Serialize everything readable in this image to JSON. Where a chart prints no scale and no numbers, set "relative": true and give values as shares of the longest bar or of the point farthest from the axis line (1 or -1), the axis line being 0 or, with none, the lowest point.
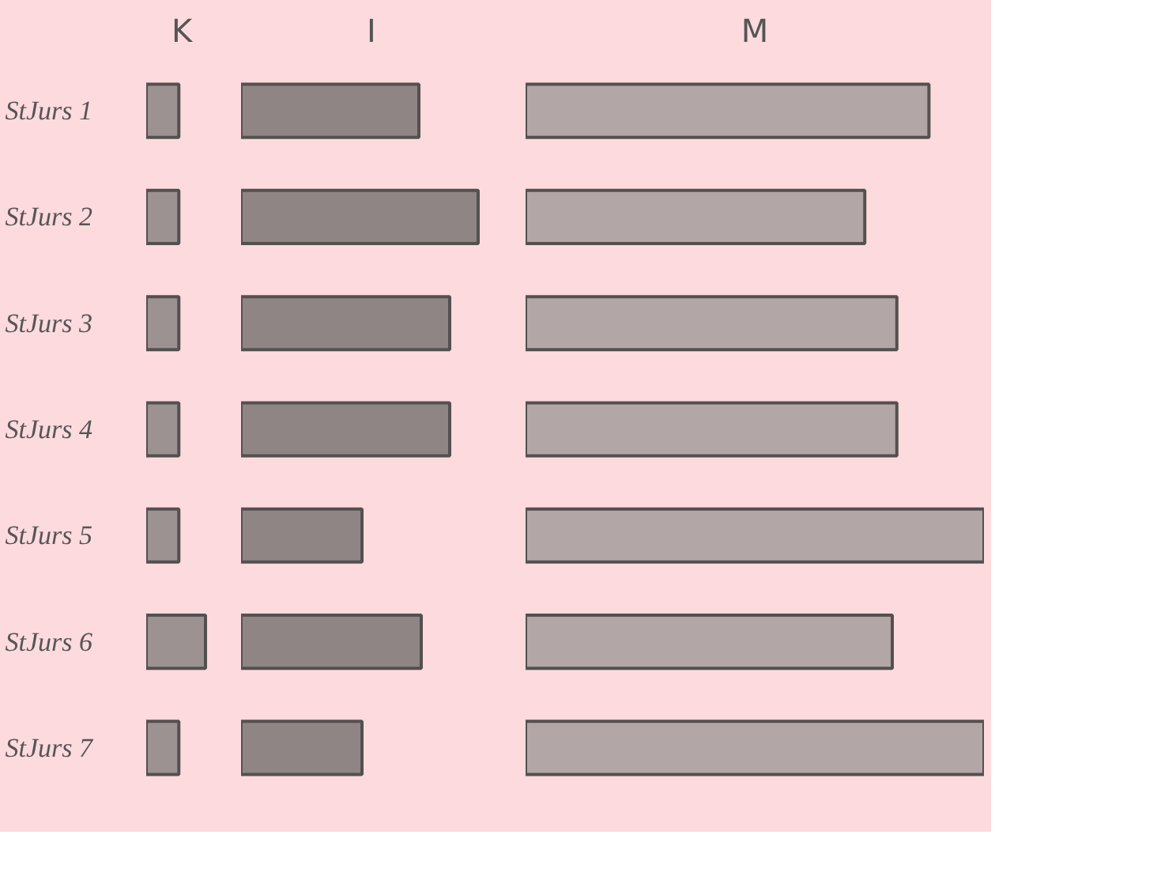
{
  "chart_data": [
    {
      "type": "bar",
      "orientation": "horizontal",
      "relative": true,
      "title": "K",
      "tick_labels": "y",
      "color": "#9c9292",
      "categories": [
        "StJurs 1",
        "StJurs 2",
        "StJurs 3",
        "StJurs 4",
        "StJurs 5",
        "StJurs 6",
        "StJurs 7"
      ],
      "values": [
        0.55,
        0.55,
        0.55,
        0.55,
        0.55,
        1,
        0.55
      ]
    },
    {
      "type": "bar",
      "orientation": "horizontal",
      "relative": true,
      "title": "I",
      "tick_labels": false,
      "color": "#8f8585",
      "categories": [
        "StJurs 1",
        "StJurs 2",
        "StJurs 3",
        "StJurs 4",
        "StJurs 5",
        "StJurs 6",
        "StJurs 7"
      ],
      "values": [
        0.75,
        1,
        0.88,
        0.88,
        0.51,
        0.76,
        0.51
      ]
    },
    {
      "type": "bar",
      "orientation": "horizontal",
      "relative": true,
      "title": "M",
      "tick_labels": false,
      "color": "#b3a6a7",
      "categories": [
        "StJurs 1",
        "StJurs 2",
        "StJurs 3",
        "StJurs 4",
        "StJurs 5",
        "StJurs 6",
        "StJurs 7"
      ],
      "values": [
        0.88,
        0.74,
        0.81,
        0.81,
        1,
        0.8,
        1
      ]
    }
  ]
}
